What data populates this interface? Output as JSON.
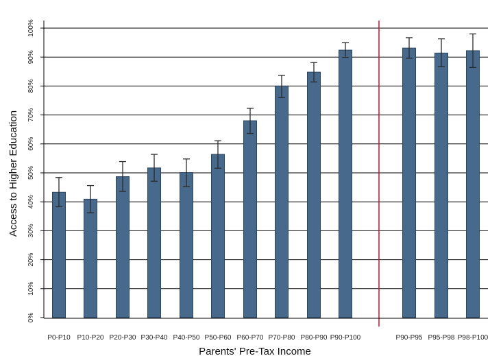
{
  "chart_data": {
    "type": "bar",
    "xlabel": "Parents' Pre-Tax Income",
    "ylabel": "Access to Higher Education",
    "ylim": [
      0,
      100
    ],
    "y_ticks": [
      "0%",
      "10%",
      "20%",
      "30%",
      "40%",
      "50%",
      "60%",
      "70%",
      "80%",
      "90%",
      "100%"
    ],
    "grid": true,
    "categories": [
      "P0-P10",
      "P10-P20",
      "P20-P30",
      "P30-P40",
      "P40-P50",
      "P50-P60",
      "P60-P70",
      "P70-P80",
      "P80-P90",
      "P90-P100",
      "P90-P95",
      "P95-P98",
      "P98-P100"
    ],
    "values": [
      43.3,
      40.9,
      48.7,
      51.7,
      50.1,
      56.4,
      68.0,
      80.0,
      84.8,
      92.4,
      93.1,
      91.4,
      92.2
    ],
    "error_low": [
      38.3,
      36.2,
      43.6,
      47.1,
      45.3,
      51.6,
      63.6,
      76.0,
      81.4,
      89.9,
      89.6,
      86.7,
      86.4
    ],
    "error_high": [
      48.4,
      45.6,
      53.9,
      56.4,
      54.8,
      61.1,
      72.3,
      83.7,
      88.1,
      95.0,
      96.7,
      96.3,
      98.0
    ],
    "colors": {
      "bar": "#46698c",
      "bar_edge": "#2a4560",
      "error": "#2b2b2b",
      "separator": "#c8102e",
      "grid": "#000000"
    },
    "separator_after_category": "P90-P100"
  }
}
